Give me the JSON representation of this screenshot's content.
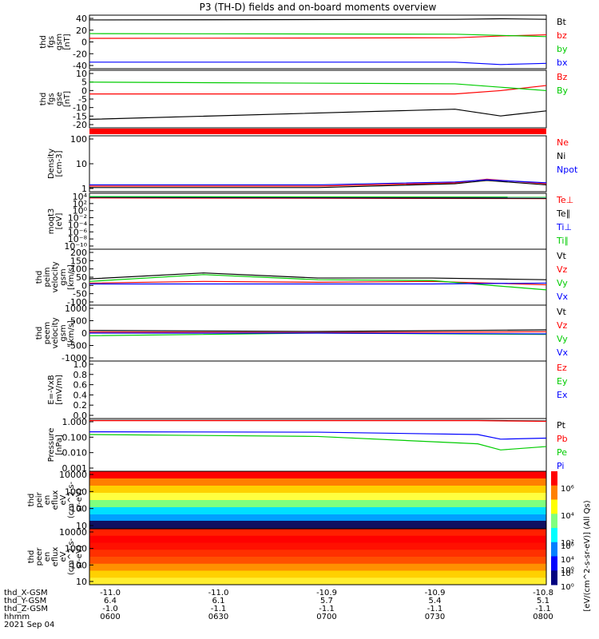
{
  "title": "P3 (TH-D) fields and on-board moments overview",
  "colors": {
    "black": "#000000",
    "red": "#ff0000",
    "green": "#00cc00",
    "blue": "#0000ff"
  },
  "chart_data": [
    {
      "type": "line",
      "name": "fgs_gsm",
      "ylabel": [
        "thd",
        "fgs",
        "gsm",
        "[nT]"
      ],
      "ylim": [
        -45,
        45
      ],
      "yticks": [
        40,
        20,
        0,
        -20,
        -40
      ],
      "legend": [
        "Bt",
        "bz",
        "by",
        "bx"
      ],
      "series": [
        {
          "name": "Bt",
          "color": "#000000",
          "x": [
            0,
            0.8,
            0.9,
            1.0
          ],
          "y": [
            37,
            38,
            39,
            38
          ]
        },
        {
          "name": "bz",
          "color": "#ff0000",
          "x": [
            0,
            0.8,
            0.9,
            1.0
          ],
          "y": [
            6,
            7,
            10,
            12
          ]
        },
        {
          "name": "by",
          "color": "#00cc00",
          "x": [
            0,
            0.8,
            0.9,
            1.0
          ],
          "y": [
            14,
            13,
            11,
            9
          ]
        },
        {
          "name": "bx",
          "color": "#0000ff",
          "x": [
            0,
            0.8,
            0.9,
            1.0
          ],
          "y": [
            -34,
            -34,
            -38,
            -36
          ]
        }
      ]
    },
    {
      "type": "line",
      "name": "fgs_gse",
      "ylabel": [
        "thd",
        "fgs",
        "gse",
        "[nT]"
      ],
      "ylim": [
        -22,
        12
      ],
      "yticks": [
        10,
        5,
        0,
        -5,
        -10,
        -15,
        -20
      ],
      "legend": [
        "Bz",
        "By"
      ],
      "series": [
        {
          "name": "Bx",
          "color": "#000000",
          "x": [
            0,
            0.8,
            0.85,
            0.9,
            1.0
          ],
          "y": [
            -17,
            -11,
            -13,
            -15,
            -12
          ]
        },
        {
          "name": "Bz",
          "color": "#ff0000",
          "x": [
            0,
            0.8,
            0.9,
            1.0
          ],
          "y": [
            -2,
            -2,
            0,
            3
          ]
        },
        {
          "name": "By",
          "color": "#00cc00",
          "x": [
            0,
            0.8,
            0.9,
            1.0
          ],
          "y": [
            5,
            4,
            2,
            0
          ]
        }
      ]
    },
    {
      "type": "line",
      "name": "density",
      "log": true,
      "ylabel": [
        "Density",
        "[cm-3]"
      ],
      "ylim": [
        0.3,
        300
      ],
      "yticks": [
        100,
        10,
        1
      ],
      "legend": [
        "Ne",
        "Ni",
        "Npot"
      ],
      "series": [
        {
          "name": "Ne",
          "color": "#ff0000",
          "x": [
            0,
            0.5,
            0.8,
            0.87,
            1.0
          ],
          "y": [
            0.6,
            0.6,
            0.9,
            1.4,
            0.8
          ]
        },
        {
          "name": "Ni",
          "color": "#000000",
          "x": [
            0,
            0.5,
            0.8,
            0.87,
            1.0
          ],
          "y": [
            0.5,
            0.5,
            0.8,
            1.2,
            0.7
          ]
        },
        {
          "name": "Npot",
          "color": "#0000ff",
          "x": [
            0,
            0.5,
            0.8,
            0.87,
            1.0
          ],
          "y": [
            0.7,
            0.7,
            1.0,
            1.3,
            0.9
          ]
        }
      ]
    },
    {
      "type": "line",
      "name": "temperature",
      "log": true,
      "ylabel": [
        "moqt3",
        "[eV]"
      ],
      "ylim": [
        1e-12,
        100000.0
      ],
      "yticks": [
        "10⁴",
        "10²",
        "10⁰",
        "10⁻²",
        "10⁻⁴",
        "10⁻⁶",
        "10⁻⁸",
        "10⁻¹⁰"
      ],
      "legend": [
        "Te⊥",
        "Te∥",
        "Ti⊥",
        "Ti∥"
      ],
      "series": [
        {
          "name": "Te⊥",
          "color": "#ff0000",
          "x": [
            0,
            1.0
          ],
          "y": [
            4000,
            2500
          ]
        },
        {
          "name": "Te∥",
          "color": "#000000",
          "x": [
            0,
            1.0
          ],
          "y": [
            6000,
            3000
          ]
        },
        {
          "name": "Ti⊥",
          "color": "#0000ff",
          "x": [
            0,
            1.0
          ],
          "y": [
            8000,
            6000
          ]
        },
        {
          "name": "Ti∥",
          "color": "#00cc00",
          "x": [
            0,
            1.0
          ],
          "y": [
            10000,
            7000
          ]
        }
      ]
    },
    {
      "type": "line",
      "name": "peim_velocity",
      "ylabel": [
        "thd",
        "peim",
        "velocity",
        "gsm",
        "[km/s]"
      ],
      "ylim": [
        -120,
        210
      ],
      "yticks": [
        200,
        150,
        100,
        50,
        0,
        -50,
        -100
      ],
      "legend": [
        "Vt",
        "Vz",
        "Vy",
        "Vx"
      ],
      "series": [
        {
          "name": "Vt",
          "color": "#000000",
          "x": [
            0,
            0.25,
            0.5,
            0.75,
            1.0
          ],
          "y": [
            35,
            70,
            40,
            40,
            30
          ]
        },
        {
          "name": "Vz",
          "color": "#ff0000",
          "x": [
            0,
            0.25,
            0.5,
            0.75,
            1.0
          ],
          "y": [
            10,
            20,
            15,
            20,
            0
          ]
        },
        {
          "name": "Vy",
          "color": "#00cc00",
          "x": [
            0,
            0.25,
            0.5,
            0.75,
            1.0
          ],
          "y": [
            20,
            60,
            30,
            25,
            -30
          ]
        },
        {
          "name": "Vx",
          "color": "#0000ff",
          "x": [
            0,
            0.25,
            0.5,
            0.75,
            1.0
          ],
          "y": [
            5,
            5,
            5,
            5,
            10
          ]
        }
      ]
    },
    {
      "type": "line",
      "name": "peem_velocity",
      "ylabel": [
        "thd",
        "peem",
        "velocity",
        "gsm",
        "[km/s]"
      ],
      "ylim": [
        -1050,
        1050
      ],
      "yticks": [
        1000,
        500,
        0,
        -500,
        -1000
      ],
      "legend": [
        "Vt",
        "Vz",
        "Vy",
        "Vx"
      ],
      "series": [
        {
          "name": "Vt",
          "color": "#000000",
          "x": [
            0,
            0.5,
            1.0
          ],
          "y": [
            100,
            60,
            120
          ]
        },
        {
          "name": "Vz",
          "color": "#ff0000",
          "x": [
            0,
            0.5,
            1.0
          ],
          "y": [
            40,
            20,
            50
          ]
        },
        {
          "name": "Vy",
          "color": "#00cc00",
          "x": [
            0,
            0.5,
            1.0
          ],
          "y": [
            -100,
            0,
            -50
          ]
        },
        {
          "name": "Vx",
          "color": "#0000ff",
          "x": [
            0,
            0.5,
            1.0
          ],
          "y": [
            0,
            0,
            -30
          ]
        }
      ]
    },
    {
      "type": "line",
      "name": "efield",
      "ylabel": [
        "E=-VxB",
        "[mV/m]"
      ],
      "ylim": [
        0,
        1
      ],
      "yticks": [
        "1.0",
        "0.8",
        "0.6",
        "0.4",
        "0.2",
        "0.0"
      ],
      "legend": [
        "Ez",
        "Ey",
        "Ex"
      ],
      "series": []
    },
    {
      "type": "line",
      "name": "pressure",
      "log": true,
      "ylabel": [
        "Pressure",
        "[nPa]"
      ],
      "ylim": [
        0.0005,
        1.3
      ],
      "yticks": [
        "1.000",
        "0.100",
        "0.010",
        "0.001"
      ],
      "legend": [
        "Pt",
        "Pb",
        "Pe",
        "Pi"
      ],
      "series": [
        {
          "name": "Pt",
          "color": "#000000",
          "x": [
            0,
            0.85,
            1.0
          ],
          "y": [
            1.0,
            1.0,
            0.9
          ]
        },
        {
          "name": "Pb",
          "color": "#ff0000",
          "x": [
            0,
            0.85,
            1.0
          ],
          "y": [
            0.95,
            0.95,
            0.85
          ]
        },
        {
          "name": "Pe",
          "color": "#00cc00",
          "x": [
            0,
            0.5,
            0.85,
            0.9,
            1.0
          ],
          "y": [
            0.12,
            0.09,
            0.03,
            0.012,
            0.02
          ]
        },
        {
          "name": "Pi",
          "color": "#0000ff",
          "x": [
            0,
            0.5,
            0.85,
            0.9,
            1.0
          ],
          "y": [
            0.18,
            0.17,
            0.12,
            0.06,
            0.07
          ]
        }
      ]
    },
    {
      "type": "heatmap",
      "name": "peir_en_eflux",
      "ylabel": [
        "thd",
        "peir",
        "en",
        "eflux",
        "eV",
        "(cm^2-s-",
        "sr-eV)"
      ],
      "yticks": [
        "10000",
        "1000",
        "100",
        "10"
      ]
    },
    {
      "type": "heatmap",
      "name": "peer_en_eflux",
      "ylabel": [
        "thd",
        "peer",
        "en",
        "eflux",
        "eV",
        "(cm^2-s-",
        "sr-eV)"
      ],
      "yticks": [
        "10000",
        "1000",
        "100",
        "10"
      ]
    }
  ],
  "colorbar": {
    "label": "[eV/(cm^2-s-sr-eV)] (All Qs)",
    "ticks": [
      "10⁶",
      "10⁴",
      "10²",
      "10⁰"
    ]
  },
  "x_axis": {
    "row_labels": [
      "thd_X-GSM",
      "thd_Y-GSM",
      "thd_Z-GSM",
      "hhmm",
      "2021 Sep 04"
    ],
    "columns": [
      {
        "x": "-11.0",
        "y": "6.4",
        "z": "-1.0",
        "hhmm": "0600"
      },
      {
        "x": "-11.0",
        "y": "6.1",
        "z": "-1.1",
        "hhmm": "0630"
      },
      {
        "x": "-10.9",
        "y": "5.7",
        "z": "-1.1",
        "hhmm": "0700"
      },
      {
        "x": "-10.9",
        "y": "5.4",
        "z": "-1.1",
        "hhmm": "0730"
      },
      {
        "x": "-10.8",
        "y": "5.1",
        "z": "-1.1",
        "hhmm": "0800"
      }
    ]
  }
}
